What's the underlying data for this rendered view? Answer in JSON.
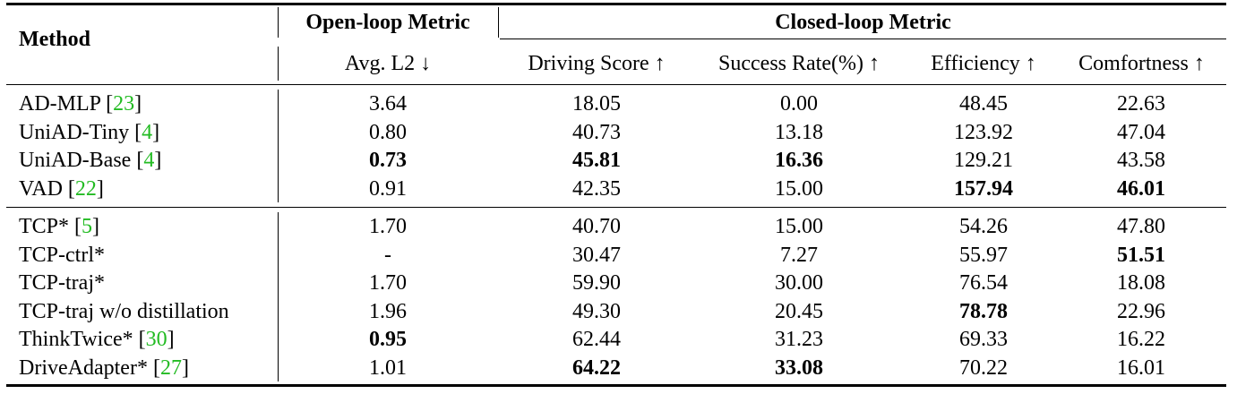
{
  "header": {
    "method": "Method",
    "open_loop": "Open-loop Metric",
    "closed_loop": "Closed-loop Metric",
    "columns": [
      "Avg. L2 ↓",
      "Driving Score ↑",
      "Success Rate(%) ↑",
      "Efficiency ↑",
      "Comfortness ↑"
    ]
  },
  "groups": [
    {
      "rows": [
        {
          "name": "AD-MLP",
          "cite": "23",
          "values": [
            "3.64",
            "18.05",
            "0.00",
            "48.45",
            "22.63"
          ],
          "bold": []
        },
        {
          "name": "UniAD-Tiny",
          "cite": "4",
          "values": [
            "0.80",
            "40.73",
            "13.18",
            "123.92",
            "47.04"
          ],
          "bold": []
        },
        {
          "name": "UniAD-Base",
          "cite": "4",
          "values": [
            "0.73",
            "45.81",
            "16.36",
            "129.21",
            "43.58"
          ],
          "bold": [
            0,
            1,
            2
          ]
        },
        {
          "name": "VAD",
          "cite": "22",
          "values": [
            "0.91",
            "42.35",
            "15.00",
            "157.94",
            "46.01"
          ],
          "bold": [
            3,
            4
          ]
        }
      ]
    },
    {
      "rows": [
        {
          "name": "TCP*",
          "cite": "5",
          "values": [
            "1.70",
            "40.70",
            "15.00",
            "54.26",
            "47.80"
          ],
          "bold": []
        },
        {
          "name": "TCP-ctrl*",
          "cite": "",
          "values": [
            "-",
            "30.47",
            "7.27",
            "55.97",
            "51.51"
          ],
          "bold": [
            4
          ]
        },
        {
          "name": "TCP-traj*",
          "cite": "",
          "values": [
            "1.70",
            "59.90",
            "30.00",
            "76.54",
            "18.08"
          ],
          "bold": []
        },
        {
          "name": "TCP-traj w/o distillation",
          "cite": "",
          "values": [
            "1.96",
            "49.30",
            "20.45",
            "78.78",
            "22.96"
          ],
          "bold": [
            3
          ]
        },
        {
          "name": "ThinkTwice*",
          "cite": "30",
          "values": [
            "0.95",
            "62.44",
            "31.23",
            "69.33",
            "16.22"
          ],
          "bold": [
            0
          ]
        },
        {
          "name": "DriveAdapter*",
          "cite": "27",
          "values": [
            "1.01",
            "64.22",
            "33.08",
            "70.22",
            "16.01"
          ],
          "bold": [
            1,
            2
          ]
        }
      ]
    }
  ]
}
